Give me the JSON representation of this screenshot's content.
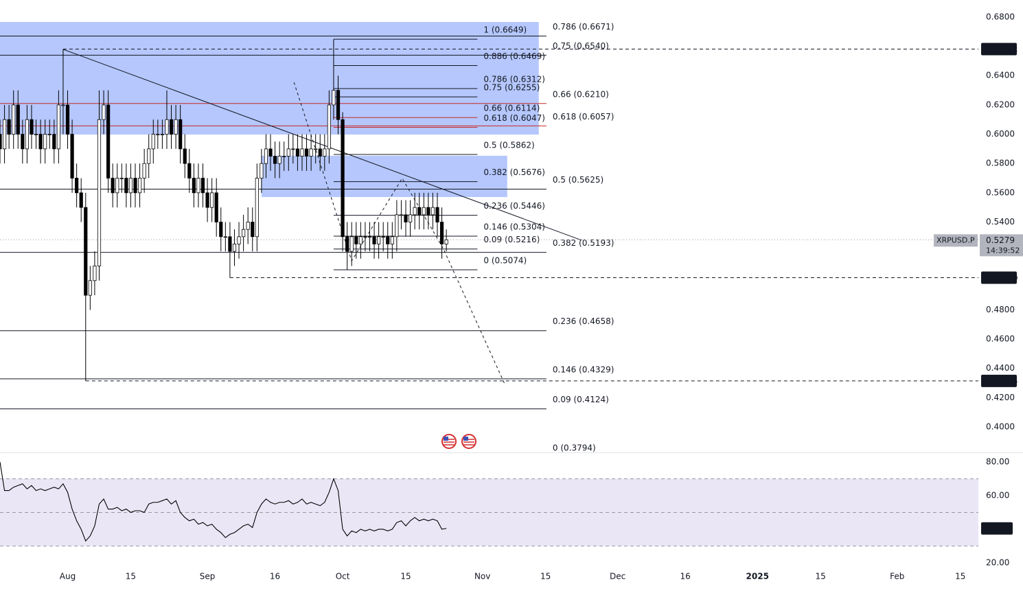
{
  "chart_data": {
    "type": "candlestick",
    "symbol": "XRPUSD.P",
    "countdown": "14:39:52",
    "xlim": [
      0,
      217
    ],
    "xticks": [
      {
        "value": 15,
        "label": "Aug"
      },
      {
        "value": 29,
        "label": "15"
      },
      {
        "value": 46,
        "label": "Sep"
      },
      {
        "value": 61,
        "label": "16"
      },
      {
        "value": 76,
        "label": "Oct"
      },
      {
        "value": 90,
        "label": "15"
      },
      {
        "value": 107,
        "label": "Nov"
      },
      {
        "value": 121,
        "label": "15"
      },
      {
        "value": 137,
        "label": "Dec"
      },
      {
        "value": 152,
        "label": "16"
      },
      {
        "value": 168,
        "label": "2025"
      },
      {
        "value": 182,
        "label": "15"
      },
      {
        "value": 199,
        "label": "Feb"
      },
      {
        "value": 213,
        "label": "15"
      }
    ],
    "ylim": [
      0.3822,
      0.6917
    ],
    "yticks": [
      {
        "value": 0.68,
        "label": "0.6800"
      },
      {
        "value": 0.64,
        "label": "0.6400"
      },
      {
        "value": 0.62,
        "label": "0.6200"
      },
      {
        "value": 0.6,
        "label": "0.6000"
      },
      {
        "value": 0.58,
        "label": "0.5800"
      },
      {
        "value": 0.56,
        "label": "0.5600"
      },
      {
        "value": 0.54,
        "label": "0.5400"
      },
      {
        "value": 0.48,
        "label": "0.4800"
      },
      {
        "value": 0.46,
        "label": "0.4600"
      },
      {
        "value": 0.44,
        "label": "0.4400"
      },
      {
        "value": 0.42,
        "label": "0.4200"
      },
      {
        "value": 0.4,
        "label": "0.4000"
      }
    ],
    "up_color": "#ffffff",
    "down_color": "#000000",
    "wick_color": "#000000",
    "open": [
      0.6,
      0.59,
      0.61,
      0.6,
      0.62,
      0.6,
      0.59,
      0.61,
      0.6,
      0.6,
      0.59,
      0.6,
      0.6,
      0.59,
      0.62,
      0.62,
      0.6,
      0.57,
      0.56,
      0.55,
      0.49,
      0.5,
      0.51,
      0.61,
      0.62,
      0.57,
      0.56,
      0.57,
      0.57,
      0.56,
      0.57,
      0.56,
      0.57,
      0.58,
      0.59,
      0.6,
      0.6,
      0.6,
      0.61,
      0.6,
      0.61,
      0.59,
      0.58,
      0.57,
      0.56,
      0.57,
      0.56,
      0.55,
      0.56,
      0.54,
      0.53,
      0.53,
      0.52,
      0.525,
      0.53,
      0.535,
      0.54,
      0.53,
      0.57,
      0.58,
      0.59,
      0.585,
      0.58,
      0.585,
      0.585,
      0.59,
      0.59,
      0.585,
      0.59,
      0.585,
      0.59,
      0.59,
      0.585,
      0.59,
      0.62,
      0.63,
      0.61,
      0.53,
      0.52,
      0.53,
      0.525,
      0.53,
      0.53,
      0.53,
      0.525,
      0.53,
      0.53,
      0.525,
      0.53,
      0.545,
      0.545,
      0.54,
      0.545,
      0.55,
      0.545,
      0.55,
      0.545,
      0.55,
      0.54,
      0.525
    ],
    "high": [
      0.61,
      0.62,
      0.62,
      0.63,
      0.63,
      0.61,
      0.62,
      0.62,
      0.61,
      0.61,
      0.61,
      0.61,
      0.61,
      0.63,
      0.658,
      0.63,
      0.61,
      0.58,
      0.57,
      0.56,
      0.51,
      0.52,
      0.63,
      0.63,
      0.63,
      0.58,
      0.58,
      0.58,
      0.58,
      0.58,
      0.58,
      0.58,
      0.59,
      0.6,
      0.61,
      0.61,
      0.61,
      0.63,
      0.62,
      0.62,
      0.62,
      0.6,
      0.59,
      0.58,
      0.58,
      0.58,
      0.57,
      0.57,
      0.57,
      0.55,
      0.54,
      0.54,
      0.535,
      0.54,
      0.545,
      0.55,
      0.55,
      0.58,
      0.59,
      0.6,
      0.6,
      0.595,
      0.595,
      0.595,
      0.6,
      0.6,
      0.6,
      0.6,
      0.6,
      0.6,
      0.6,
      0.6,
      0.6,
      0.63,
      0.6649,
      0.64,
      0.615,
      0.54,
      0.54,
      0.54,
      0.54,
      0.54,
      0.54,
      0.54,
      0.54,
      0.54,
      0.54,
      0.54,
      0.555,
      0.555,
      0.555,
      0.555,
      0.56,
      0.56,
      0.56,
      0.56,
      0.56,
      0.56,
      0.55,
      0.535
    ],
    "low": [
      0.58,
      0.58,
      0.59,
      0.59,
      0.59,
      0.58,
      0.58,
      0.59,
      0.59,
      0.58,
      0.58,
      0.59,
      0.58,
      0.58,
      0.6,
      0.59,
      0.56,
      0.55,
      0.54,
      0.4315,
      0.48,
      0.49,
      0.5,
      0.6,
      0.56,
      0.55,
      0.55,
      0.56,
      0.55,
      0.55,
      0.55,
      0.55,
      0.56,
      0.57,
      0.58,
      0.59,
      0.59,
      0.59,
      0.59,
      0.59,
      0.58,
      0.57,
      0.56,
      0.55,
      0.55,
      0.55,
      0.54,
      0.54,
      0.53,
      0.52,
      0.52,
      0.502,
      0.51,
      0.515,
      0.52,
      0.525,
      0.52,
      0.52,
      0.56,
      0.57,
      0.575,
      0.57,
      0.57,
      0.575,
      0.575,
      0.58,
      0.575,
      0.575,
      0.575,
      0.575,
      0.58,
      0.575,
      0.575,
      0.58,
      0.61,
      0.6,
      0.52,
      0.5074,
      0.51,
      0.515,
      0.515,
      0.52,
      0.52,
      0.515,
      0.515,
      0.52,
      0.515,
      0.515,
      0.52,
      0.535,
      0.53,
      0.53,
      0.535,
      0.535,
      0.535,
      0.535,
      0.535,
      0.53,
      0.515,
      0.52
    ],
    "close": [
      0.59,
      0.61,
      0.6,
      0.62,
      0.6,
      0.59,
      0.61,
      0.6,
      0.6,
      0.59,
      0.6,
      0.6,
      0.59,
      0.62,
      0.62,
      0.6,
      0.57,
      0.56,
      0.55,
      0.49,
      0.5,
      0.51,
      0.61,
      0.62,
      0.57,
      0.56,
      0.57,
      0.57,
      0.56,
      0.57,
      0.56,
      0.57,
      0.58,
      0.59,
      0.6,
      0.6,
      0.6,
      0.61,
      0.6,
      0.61,
      0.59,
      0.58,
      0.57,
      0.56,
      0.57,
      0.56,
      0.55,
      0.56,
      0.54,
      0.53,
      0.53,
      0.52,
      0.525,
      0.53,
      0.535,
      0.54,
      0.53,
      0.57,
      0.58,
      0.59,
      0.585,
      0.58,
      0.585,
      0.585,
      0.59,
      0.59,
      0.585,
      0.59,
      0.585,
      0.59,
      0.59,
      0.585,
      0.59,
      0.62,
      0.63,
      0.61,
      0.53,
      0.52,
      0.53,
      0.525,
      0.53,
      0.53,
      0.53,
      0.525,
      0.53,
      0.53,
      0.525,
      0.53,
      0.545,
      0.545,
      0.54,
      0.545,
      0.55,
      0.545,
      0.55,
      0.545,
      0.55,
      0.54,
      0.525,
      0.5279
    ],
    "zones": [
      {
        "x": [
          0,
          119.5
        ],
        "y": [
          0.5998,
          0.6767
        ],
        "color": "#a8bdfc"
      },
      {
        "x": [
          58,
          112.5
        ],
        "y": [
          0.5571,
          0.5853
        ],
        "color": "#a8bdfc"
      }
    ],
    "levels": [
      {
        "value": 0.6582,
        "from": 14
      },
      {
        "value": 0.502,
        "label": "0.5020",
        "from": 51
      },
      {
        "value": 0.4315,
        "from": 19
      }
    ],
    "drawings": [
      {
        "points": [
          [
            14,
            0.658
          ],
          [
            129,
            0.5276
          ]
        ],
        "dashed": false
      },
      {
        "points": [
          [
            65.2,
            0.6355
          ],
          [
            78,
            0.5135
          ],
          [
            89.2,
            0.5699
          ],
          [
            98.3,
            0.522
          ],
          [
            112,
            0.429
          ]
        ],
        "dashed": true
      }
    ],
    "fibs": [
      {
        "x": [
          0,
          121.2
        ],
        "levels": [
          {
            "text": "0.786 (0.6671)",
            "value": 0.6671,
            "color": "#131722"
          },
          {
            "text": "0.75 (0.6540)",
            "value": 0.654,
            "color": "#131722"
          },
          {
            "text": "0.66 (0.6210)",
            "value": 0.621,
            "color": "#c62828"
          },
          {
            "text": "0.618 (0.6057)",
            "value": 0.6057,
            "color": "#c62828"
          },
          {
            "text": "0.5 (0.5625)",
            "value": 0.5625,
            "color": "#131722"
          },
          {
            "text": "0.382 (0.5193)",
            "value": 0.5193,
            "color": "#131722"
          },
          {
            "text": "0.236 (0.4658)",
            "value": 0.4658,
            "color": "#131722"
          },
          {
            "text": "0.146 (0.4329)",
            "value": 0.4329,
            "color": "#131722"
          },
          {
            "text": "0.09 (0.4124)",
            "value": 0.4124,
            "color": "#131722"
          },
          {
            "text": "0 (0.3794)",
            "value": 0.3794,
            "color": "#131722"
          }
        ]
      },
      {
        "x": [
          74,
          105.9
        ],
        "levels": [
          {
            "text": "1 (0.6649)",
            "value": 0.6649,
            "color": "#131722"
          },
          {
            "text": "0.886 (0.6469)",
            "value": 0.6469,
            "color": "#131722"
          },
          {
            "text": "0.786 (0.6312)",
            "value": 0.6312,
            "color": "#131722"
          },
          {
            "text": "0.75 (0.6255)",
            "value": 0.6255,
            "color": "#131722"
          },
          {
            "text": "0.66 (0.6114)",
            "value": 0.6114,
            "color": "#c62828"
          },
          {
            "text": "0.618 (0.6047)",
            "value": 0.6047,
            "color": "#c62828"
          },
          {
            "text": "0.5 (0.5862)",
            "value": 0.5862,
            "color": "#131722"
          },
          {
            "text": "0.382 (0.5676)",
            "value": 0.5676,
            "color": "#131722"
          },
          {
            "text": "0.236 (0.5446)",
            "value": 0.5446,
            "color": "#131722"
          },
          {
            "text": "0.146 (0.5304)",
            "value": 0.5304,
            "color": "#131722"
          },
          {
            "text": "0.09 (0.5216)",
            "value": 0.5216,
            "color": "#131722"
          },
          {
            "text": "0 (0.5074)",
            "value": 0.5074,
            "color": "#131722"
          }
        ]
      }
    ],
    "rsi": {
      "ylim": [
        16.7,
        85.3
      ],
      "yticks": [
        {
          "value": 80,
          "label": "80.00"
        },
        {
          "value": 60,
          "label": "60.00"
        },
        {
          "value": 20,
          "label": "20.00"
        }
      ],
      "upper": 70,
      "middle": 50,
      "lower": 30,
      "color": "#000000",
      "band_color": "#ebe6f6",
      "values": [
        80,
        63,
        63,
        65,
        66,
        67,
        64,
        66,
        63,
        64,
        63,
        64,
        65,
        64,
        67,
        62,
        52,
        45,
        40,
        33,
        36,
        42,
        55,
        58,
        52,
        52,
        53,
        51,
        52,
        50,
        51,
        51,
        50,
        55,
        56,
        56,
        57,
        58,
        55,
        57,
        50,
        47,
        45,
        46,
        43,
        44,
        42,
        43,
        40,
        38,
        35,
        37,
        38,
        40,
        42,
        43,
        41,
        50,
        55,
        58,
        56,
        55,
        56,
        56,
        57,
        55,
        56,
        58,
        55,
        56,
        55,
        54,
        56,
        62,
        70,
        63,
        40,
        36,
        39,
        38,
        40,
        39,
        40,
        39,
        40,
        40,
        39,
        40,
        44,
        45,
        42,
        45,
        47,
        45,
        46,
        45,
        46,
        45,
        40,
        40.49
      ]
    }
  }
}
